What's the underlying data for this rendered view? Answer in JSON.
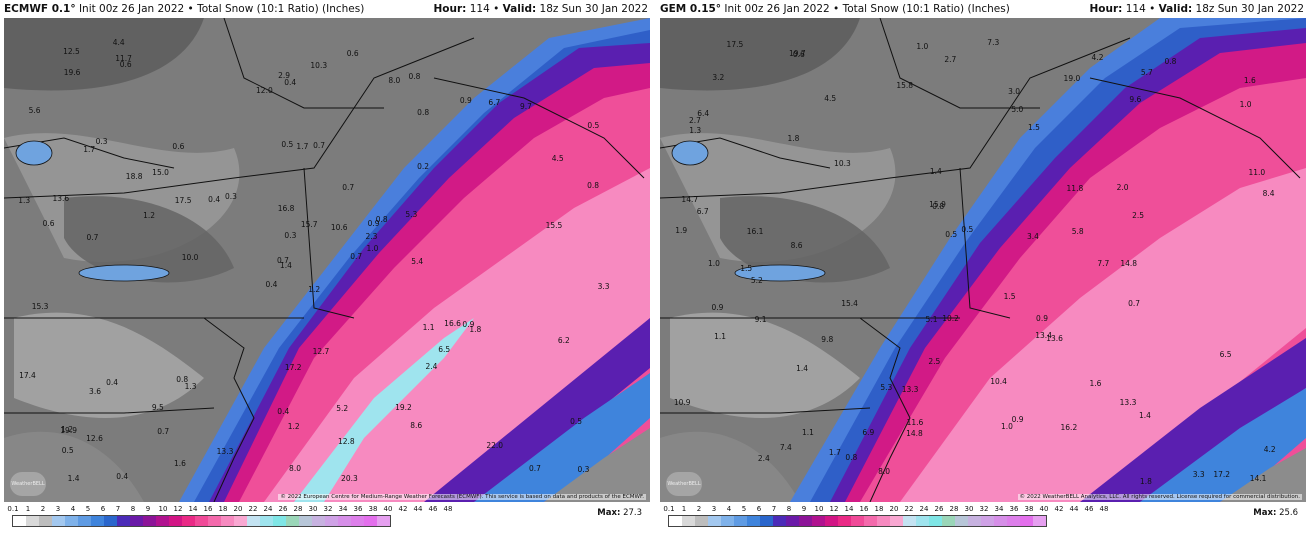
{
  "panels": [
    {
      "id": "ecmwf",
      "model": "ECMWF 0.1°",
      "init": "Init 00z 26 Jan 2022",
      "product": "Total Snow (10:1 Ratio) (Inches)",
      "hour_label": "Hour:",
      "hour": "114",
      "valid_label": "Valid:",
      "valid": "18z Sun 30 Jan 2022",
      "copyright": "© 2022 European Centre for Medium-Range Weather Forecasts (ECMWF). This service is based on data and products of the ECMWF.",
      "max_label": "Max:",
      "max": "27.3",
      "values": [
        "1.2",
        "1.7",
        "1.4",
        "1.2",
        "0.9",
        "1.3",
        "0.8",
        "0.7",
        "0.8",
        "0.7",
        "0.6",
        "0.3",
        "0.7",
        "0.5",
        "0.4",
        "0.2",
        "0.4",
        "0.5",
        "0.7",
        "0.4",
        "0.3",
        "0.5",
        "0.7",
        "1.7",
        "0.8",
        "1.8",
        "0.3",
        "0.4",
        "0.6",
        "1.1",
        "0.8",
        "0.7",
        "0.4",
        "0.3",
        "0.6",
        "0.9",
        "0.8",
        "0.7",
        "0.5",
        "0.9",
        "0.6",
        "0.4",
        "1.2",
        "2.4",
        "1.6",
        "1.3",
        "2.3",
        "1.4",
        "1.2",
        "1.0",
        "3.6",
        "4.5",
        "5.6",
        "6.5",
        "8.6",
        "9.5",
        "11.7",
        "12.5",
        "5.2",
        "9.7",
        "10.3",
        "10.0",
        "13.6",
        "15.0",
        "6.7",
        "4.4",
        "8.0",
        "12.0",
        "15.7",
        "17.4",
        "17.2",
        "13.3",
        "16.6",
        "17.5",
        "19.9",
        "19.6",
        "18.8",
        "15.3",
        "16.8",
        "12.8",
        "10.6",
        "12.6",
        "5.4",
        "6.2",
        "8.0",
        "15.5",
        "12.7",
        "22.0",
        "20.3",
        "19.2",
        "2.9",
        "3.3",
        "5.3"
      ]
    },
    {
      "id": "gem",
      "model": "GEM 0.15°",
      "init": "Init 00z 26 Jan 2022",
      "product": "Total Snow (10:1 Ratio) (Inches)",
      "hour_label": "Hour:",
      "hour": "114",
      "valid_label": "Valid:",
      "valid": "18z Sun 30 Jan 2022",
      "copyright": "© 2022 WeatherBELL Analytics, LLC. All rights reserved. License required for commercial distribution.",
      "max_label": "Max:",
      "max": "25.6",
      "values": [
        "1.9",
        "2.7",
        "2.0",
        "1.6",
        "2.7",
        "3.3",
        "1.5",
        "1.5",
        "1.4",
        "0.8",
        "0.5",
        "0.7",
        "1.0",
        "1.3",
        "1.8",
        "1.4",
        "0.9",
        "1.0",
        "1.5",
        "2.5",
        "1.6",
        "1.4",
        "1.0",
        "0.8",
        "1.1",
        "0.5",
        "0.9",
        "0.6",
        "0.8",
        "1.0",
        "0.9",
        "1.8",
        "3.4",
        "2.4",
        "1.7",
        "1.1",
        "2.5",
        "3.2",
        "6.9",
        "10.3",
        "10.4",
        "5.8",
        "4.2",
        "8.4",
        "10.2",
        "9.8",
        "9.6",
        "10.9",
        "11.6",
        "8.6",
        "11.8",
        "13.3",
        "13.6",
        "14.8",
        "16.2",
        "15.8",
        "13.4",
        "15.9",
        "5.7",
        "5.0",
        "5.1",
        "7.4",
        "11.0",
        "14.1",
        "17.2",
        "16.1",
        "13.3",
        "15.4",
        "14.8",
        "14.7",
        "19.0",
        "17.5",
        "19.7",
        "5.3",
        "3.0",
        "4.5",
        "4.2",
        "5.2",
        "7.3",
        "6.4",
        "9.1",
        "8.0",
        "7.7",
        "6.5",
        "6.7"
      ]
    }
  ],
  "legend": {
    "ticks": [
      "0.1",
      "1",
      "2",
      "3",
      "4",
      "5",
      "6",
      "7",
      "8",
      "9",
      "10",
      "12",
      "14",
      "16",
      "18",
      "20",
      "22",
      "24",
      "26",
      "28",
      "30",
      "32",
      "34",
      "36",
      "38",
      "40",
      "42",
      "44",
      "46",
      "48"
    ],
    "colors": [
      "#ffffff",
      "#d9d9d9",
      "#bdbdbd",
      "#a3c8ef",
      "#7fb2ea",
      "#5f9be3",
      "#3f84dc",
      "#2a66cc",
      "#4b2bb8",
      "#6a1aa8",
      "#8c1498",
      "#b0128f",
      "#d21585",
      "#ea2a86",
      "#f04a98",
      "#f46aac",
      "#f78ac0",
      "#f9a8d2",
      "#c4e3f2",
      "#9fe4ee",
      "#7fe6e6",
      "#9ad6b8",
      "#b7c6d8",
      "#c7b2e0",
      "#cfa2e6",
      "#d68fe8",
      "#dd7fea",
      "#e36fec",
      "#e6a0f0"
    ]
  },
  "icons": {
    "logo": "weatherbell-logo"
  }
}
